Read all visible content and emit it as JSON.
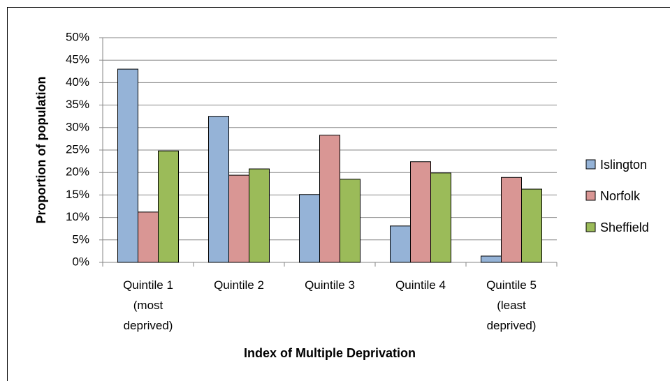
{
  "chart_data": {
    "type": "bar",
    "x_label": "Index of Multiple Deprivation",
    "y_label": "Proportion of population",
    "categories": [
      "Quintile 1\n(most\ndeprived)",
      "Quintile 2",
      "Quintile 3",
      "Quintile 4",
      "Quintile 5\n(least\ndeprived)"
    ],
    "series": [
      {
        "name": "Islington",
        "color": "#95b3d7",
        "values": [
          43.0,
          32.5,
          15.1,
          8.1,
          1.4
        ]
      },
      {
        "name": "Norfolk",
        "color": "#d99694",
        "values": [
          11.2,
          19.4,
          28.3,
          22.4,
          18.9
        ]
      },
      {
        "name": "Sheffield",
        "color": "#9bbb59",
        "values": [
          24.8,
          20.8,
          18.5,
          19.9,
          16.3
        ]
      }
    ],
    "ylim": [
      0,
      50
    ],
    "yticks": [
      {
        "value": 0,
        "label": "0%"
      },
      {
        "value": 5,
        "label": "5%"
      },
      {
        "value": 10,
        "label": "10%"
      },
      {
        "value": 15,
        "label": "15%"
      },
      {
        "value": 20,
        "label": "20%"
      },
      {
        "value": 25,
        "label": "25%"
      },
      {
        "value": 30,
        "label": "30%"
      },
      {
        "value": 35,
        "label": "35%"
      },
      {
        "value": 40,
        "label": "40%"
      },
      {
        "value": 45,
        "label": "45%"
      },
      {
        "value": 50,
        "label": "50%"
      }
    ],
    "grid": true,
    "legend": "right"
  }
}
